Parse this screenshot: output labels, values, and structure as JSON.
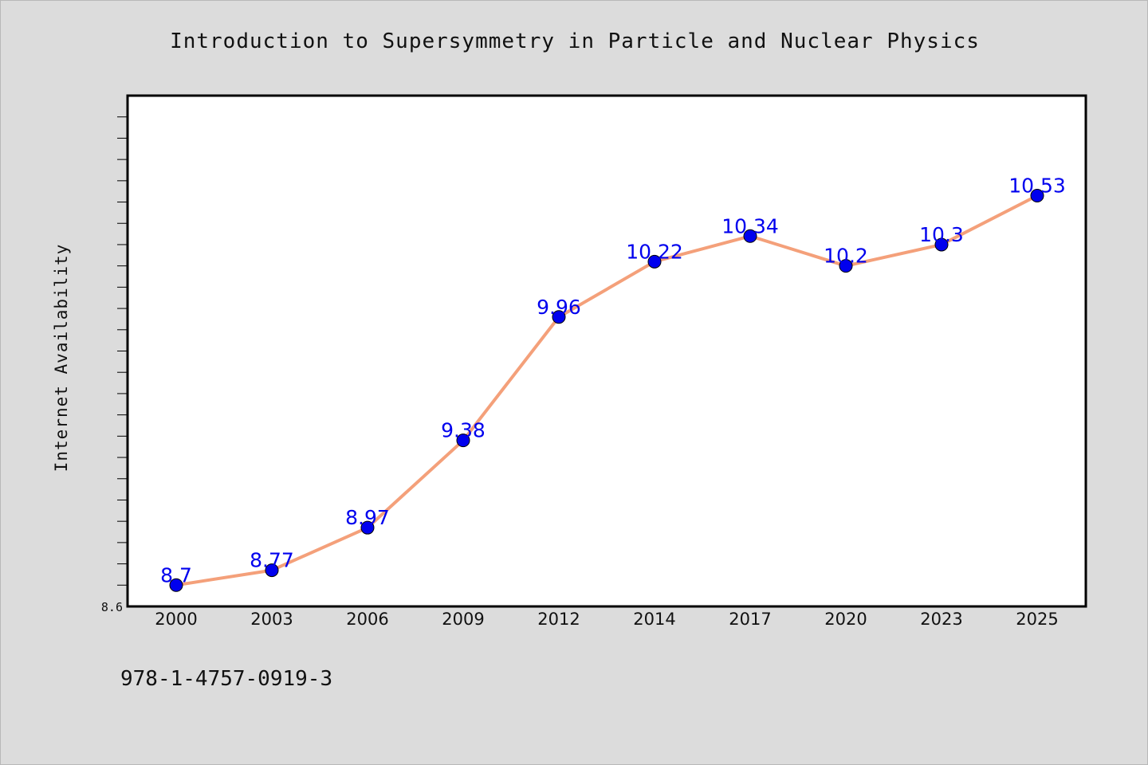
{
  "chart_data": {
    "type": "line",
    "title": "Introduction to Supersymmetry in Particle and Nuclear Physics",
    "xlabel": "",
    "ylabel": "Internet Availability",
    "categories": [
      "2000",
      "2003",
      "2006",
      "2009",
      "2012",
      "2014",
      "2017",
      "2020",
      "2023",
      "2025"
    ],
    "series": [
      {
        "values": [
          8.7,
          8.77,
          8.97,
          9.38,
          9.96,
          10.22,
          10.34,
          10.2,
          10.3,
          10.53
        ]
      }
    ],
    "data_labels": [
      "8.7",
      "8.77",
      "8.97",
      "9.38",
      "9.96",
      "10.22",
      "10.34",
      "10.2",
      "10.3",
      "10.53"
    ],
    "ylim": [
      8.6,
      11.0
    ],
    "y_tick_labels": [
      "8.6"
    ],
    "grid": false,
    "colors": {
      "line": "#f4a07a",
      "marker": "#0000ee",
      "label": "#0000ee",
      "background": "#dcdcdc",
      "plot_bg": "#ffffff"
    }
  },
  "footer": {
    "isbn": "978-1-4757-0919-3"
  }
}
